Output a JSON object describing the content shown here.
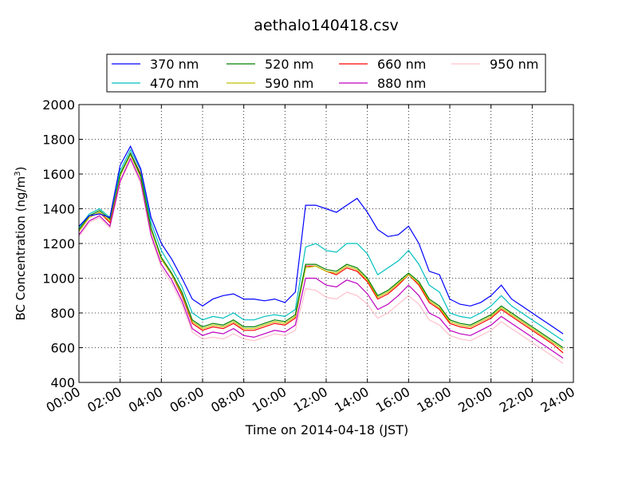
{
  "chart_data": {
    "type": "line",
    "title": "aethalo140418.csv",
    "xlabel": "Time on 2014-04-18 (JST)",
    "ylabel_main": "BC Concentration (ng/m",
    "ylabel_sup": "3",
    "ylabel_close": ")",
    "xlim": [
      "00:00",
      "24:00"
    ],
    "ylim": [
      400,
      2000
    ],
    "grid": true,
    "legend_position": "top-center",
    "x_ticks": [
      "00:00",
      "02:00",
      "04:00",
      "06:00",
      "08:00",
      "10:00",
      "12:00",
      "14:00",
      "16:00",
      "18:00",
      "20:00",
      "22:00",
      "24:00"
    ],
    "y_ticks": [
      400,
      600,
      800,
      1000,
      1200,
      1400,
      1600,
      1800,
      2000
    ],
    "x_hours": [
      0,
      0.5,
      1,
      1.5,
      2,
      2.5,
      3,
      3.5,
      4,
      4.5,
      5,
      5.5,
      6,
      6.5,
      7,
      7.5,
      8,
      8.5,
      9,
      9.5,
      10,
      10.5,
      11,
      11.5,
      12,
      12.5,
      13,
      13.5,
      14,
      14.5,
      15,
      15.5,
      16,
      16.5,
      17,
      17.5,
      18,
      18.5,
      19,
      19.5,
      20,
      20.5,
      21,
      21.5,
      22,
      22.5,
      23,
      23.5
    ],
    "series": [
      {
        "name": "370 nm",
        "color": "#0000ff",
        "values": [
          1300,
          1360,
          1370,
          1350,
          1650,
          1760,
          1630,
          1350,
          1200,
          1110,
          1000,
          880,
          840,
          880,
          900,
          910,
          880,
          880,
          870,
          880,
          860,
          920,
          1420,
          1420,
          1400,
          1380,
          1420,
          1460,
          1380,
          1280,
          1240,
          1250,
          1300,
          1200,
          1040,
          1020,
          880,
          850,
          840,
          860,
          900,
          960,
          880,
          840,
          800,
          760,
          720,
          680
        ]
      },
      {
        "name": "470 nm",
        "color": "#00bfbf",
        "values": [
          1290,
          1370,
          1400,
          1350,
          1620,
          1740,
          1620,
          1320,
          1160,
          1060,
          950,
          800,
          760,
          780,
          770,
          800,
          760,
          760,
          780,
          790,
          780,
          820,
          1180,
          1200,
          1160,
          1150,
          1200,
          1200,
          1140,
          1020,
          1060,
          1100,
          1160,
          1080,
          960,
          920,
          800,
          780,
          770,
          800,
          840,
          900,
          840,
          800,
          760,
          720,
          680,
          640
        ]
      },
      {
        "name": "520 nm",
        "color": "#008000",
        "values": [
          1280,
          1360,
          1390,
          1340,
          1600,
          1720,
          1590,
          1290,
          1120,
          1030,
          920,
          760,
          720,
          740,
          730,
          760,
          720,
          720,
          740,
          760,
          750,
          790,
          1080,
          1080,
          1050,
          1040,
          1080,
          1060,
          1000,
          900,
          930,
          980,
          1030,
          980,
          880,
          840,
          760,
          740,
          730,
          760,
          790,
          840,
          800,
          760,
          720,
          680,
          640,
          600
        ]
      },
      {
        "name": "590 nm",
        "color": "#bfbf00",
        "values": [
          1270,
          1350,
          1380,
          1330,
          1590,
          1710,
          1580,
          1280,
          1110,
          1020,
          910,
          750,
          710,
          730,
          720,
          750,
          710,
          710,
          730,
          750,
          740,
          780,
          1060,
          1070,
          1040,
          1030,
          1070,
          1050,
          990,
          890,
          920,
          970,
          1020,
          970,
          870,
          830,
          750,
          730,
          720,
          750,
          780,
          830,
          790,
          750,
          710,
          670,
          630,
          590
        ]
      },
      {
        "name": "660 nm",
        "color": "#ff0000",
        "values": [
          1270,
          1350,
          1380,
          1320,
          1590,
          1720,
          1600,
          1280,
          1110,
          1020,
          900,
          740,
          700,
          720,
          710,
          740,
          700,
          700,
          720,
          740,
          730,
          770,
          1070,
          1070,
          1040,
          1020,
          1060,
          1040,
          980,
          880,
          910,
          960,
          1020,
          960,
          860,
          820,
          740,
          720,
          710,
          740,
          770,
          820,
          780,
          740,
          700,
          660,
          620,
          570
        ]
      },
      {
        "name": "880 nm",
        "color": "#bf00bf",
        "values": [
          1250,
          1330,
          1360,
          1300,
          1560,
          1690,
          1560,
          1250,
          1080,
          990,
          870,
          710,
          670,
          690,
          680,
          710,
          670,
          660,
          680,
          700,
          690,
          730,
          1000,
          1000,
          960,
          950,
          990,
          970,
          910,
          820,
          850,
          900,
          960,
          900,
          800,
          770,
          700,
          680,
          670,
          700,
          730,
          780,
          740,
          700,
          660,
          620,
          580,
          540
        ]
      },
      {
        "name": "950 nm",
        "color": "#ffc0cb",
        "values": [
          1240,
          1320,
          1350,
          1290,
          1550,
          1680,
          1540,
          1240,
          1060,
          970,
          850,
          690,
          650,
          660,
          650,
          680,
          650,
          640,
          660,
          680,
          670,
          700,
          940,
          930,
          890,
          880,
          920,
          900,
          850,
          770,
          800,
          850,
          900,
          850,
          760,
          730,
          670,
          650,
          640,
          670,
          700,
          750,
          710,
          670,
          630,
          590,
          550,
          510
        ]
      }
    ]
  }
}
